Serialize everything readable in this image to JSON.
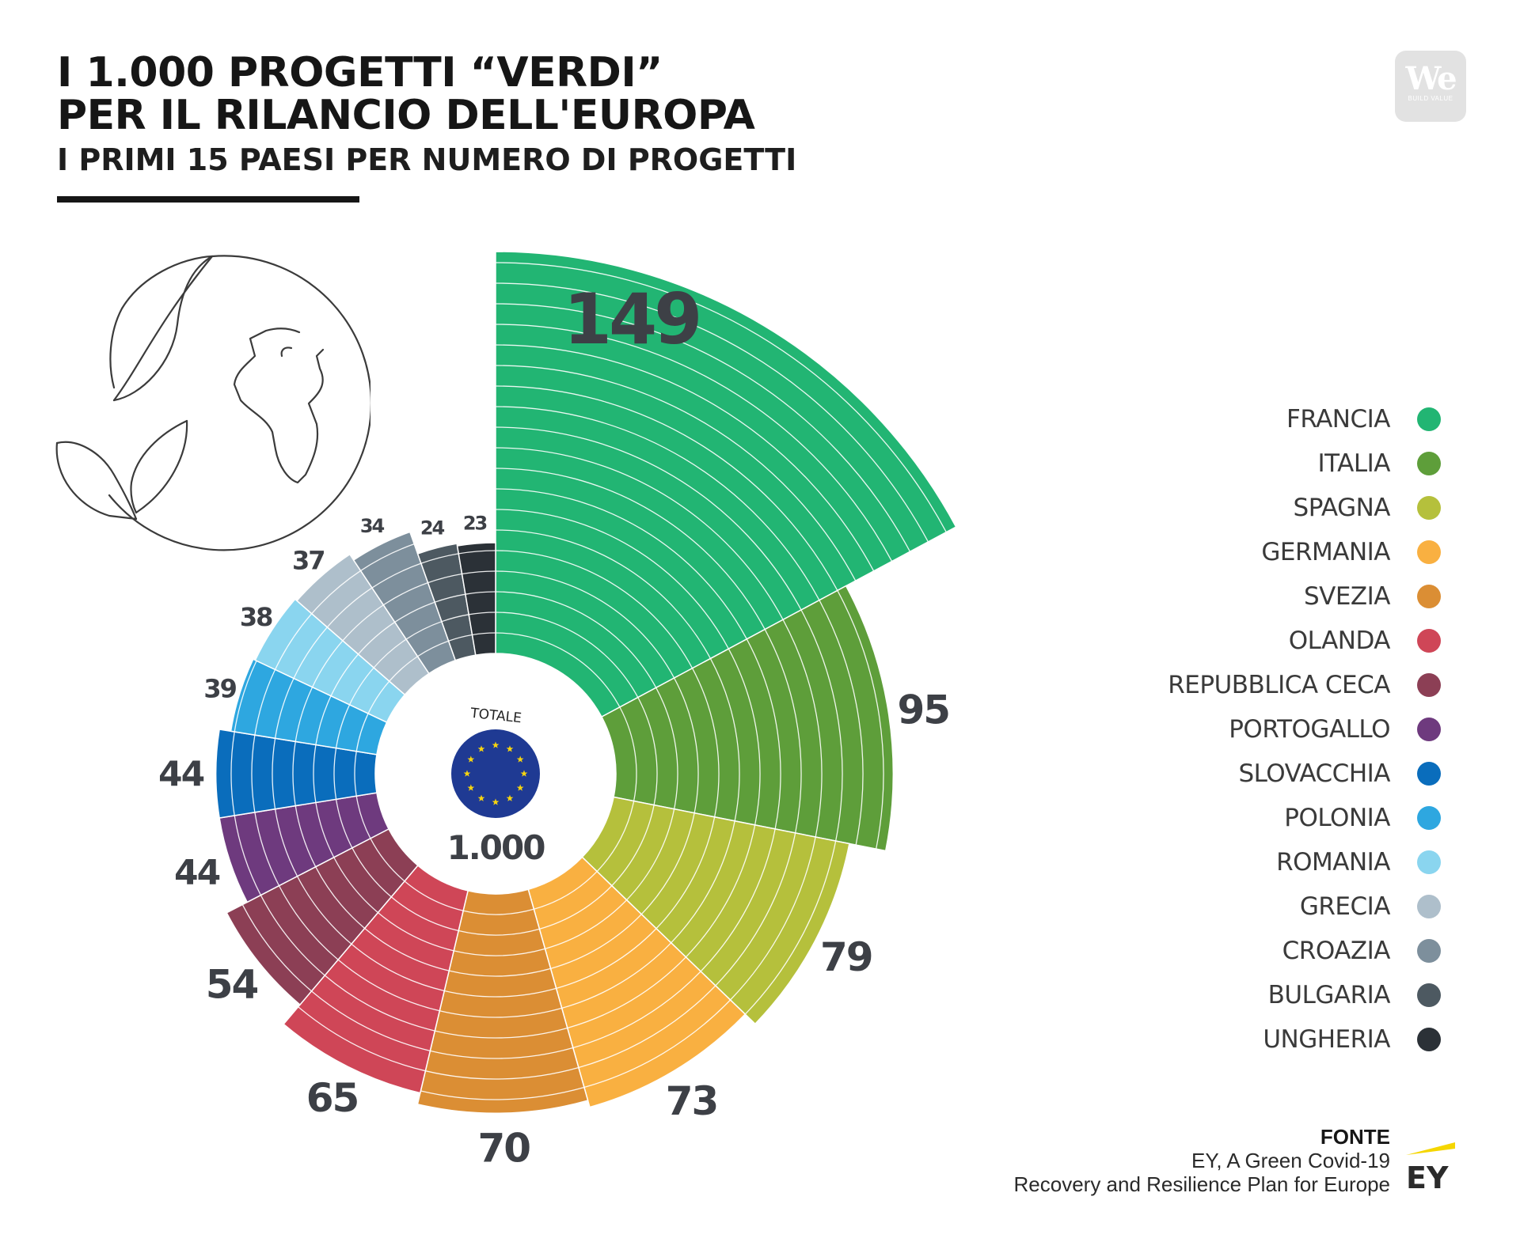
{
  "header": {
    "title_line1": "I 1.000 PROGETTI “VERDI”",
    "title_line2": "PER IL RILANCIO DELL'EUROPA",
    "subtitle": "I PRIMI 15 PAESI PER NUMERO DI PROGETTI",
    "logo_text": "We",
    "logo_subtext": "BUILD VALUE"
  },
  "center": {
    "label": "TOTALE",
    "value": "1.000",
    "icon": "eu-flag-icon"
  },
  "chart_data": {
    "type": "bar",
    "subtype": "radial",
    "categories": [
      "FRANCIA",
      "ITALIA",
      "SPAGNA",
      "GERMANIA",
      "SVEZIA",
      "OLANDA",
      "REPUBBLICA CECA",
      "PORTOGALLO",
      "SLOVACCHIA",
      "POLONIA",
      "ROMANIA",
      "GRECIA",
      "CROAZIA",
      "BULGARIA",
      "UNGHERIA"
    ],
    "values": [
      149,
      95,
      79,
      73,
      70,
      65,
      54,
      44,
      44,
      39,
      38,
      37,
      34,
      24,
      23
    ],
    "value_labels": [
      "149",
      "95",
      "79",
      "73",
      "70",
      "65",
      "54",
      "44",
      "44",
      "39",
      "38",
      "37",
      "34",
      "24",
      "23"
    ],
    "total_label": "1.000",
    "colors": [
      "#22b573",
      "#5e9e3a",
      "#b5c03c",
      "#f9b041",
      "#db8e34",
      "#cf4657",
      "#8c3f55",
      "#6e3a7e",
      "#0a6dbc",
      "#2ea7e0",
      "#8ad5ef",
      "#aebfcb",
      "#7d8f9c",
      "#4d5961",
      "#2b3137"
    ],
    "legend_position": "right"
  },
  "source": {
    "heading": "FONTE",
    "line1": "EY, A Green Covid-19",
    "line2": "Recovery and Resilience Plan for Europe",
    "logo_text": "EY"
  }
}
